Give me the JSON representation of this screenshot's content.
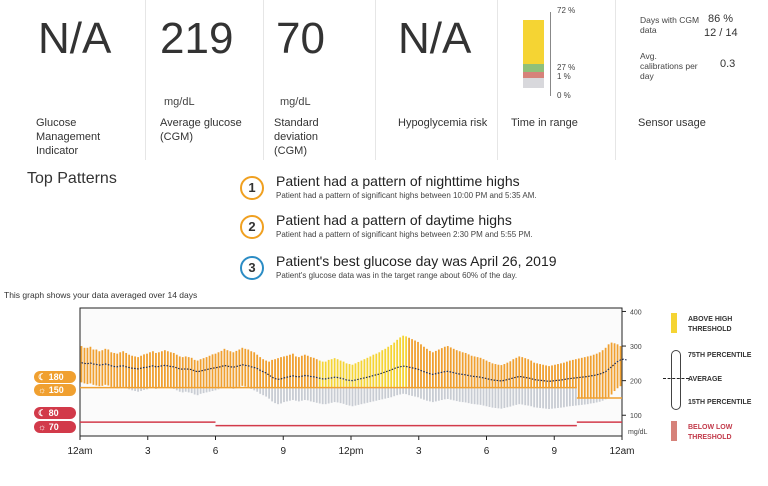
{
  "metrics": {
    "gmi": {
      "value": "N/A",
      "label": "Glucose Management Indicator"
    },
    "avg_glucose": {
      "value": "219",
      "unit": "mg/dL",
      "label": "Average glucose (CGM)"
    },
    "std_dev": {
      "value": "70",
      "unit": "mg/dL",
      "label": "Standard deviation (CGM)"
    },
    "hypo_risk": {
      "value": "N/A",
      "label": "Hypoglycemia risk"
    },
    "time_in_range": {
      "label": "Time in range",
      "above": "72 %",
      "in_range": "27 %",
      "low": "1 %",
      "very_low": "0 %",
      "above_fraction": 0.72,
      "in_range_fraction": 0.27,
      "low_fraction": 0.01,
      "very_low_fraction": 0.0
    },
    "sensor_usage": {
      "label": "Sensor usage",
      "days_with_label": "Days with CGM data",
      "days_with_pct": "86 %",
      "days_with_count": "12 / 14",
      "calibrations_label": "Avg. calibrations per day",
      "calibrations_value": "0.3"
    }
  },
  "top_patterns": {
    "title": "Top Patterns",
    "items": [
      {
        "number": "1",
        "heading": "Patient had a pattern of nighttime highs",
        "detail": "Patient had a pattern of significant highs between 10:00 PM and 5:35 AM."
      },
      {
        "number": "2",
        "heading": "Patient had a pattern of daytime highs",
        "detail": "Patient had a pattern of significant highs between 2:30 PM and 5:55 PM."
      },
      {
        "number": "3",
        "heading": "Patient's best glucose day was April 26, 2019",
        "detail": "Patient's glucose data was in the target range about 60% of the day."
      }
    ]
  },
  "graph_caption": "This graph shows your data averaged over 14 days",
  "targets": {
    "high_1": "180",
    "high_2": "150",
    "low_1": "80",
    "low_2": "70"
  },
  "legend": {
    "above_high": "ABOVE HIGH THRESHOLD",
    "p75": "75TH PERCENTILE",
    "average": "AVERAGE",
    "p15": "15TH PERCENTILE",
    "below_low": "BELOW LOW THRESHOLD"
  },
  "colors": {
    "above_high": "#f5d433",
    "orange": "#f0a030",
    "below": "#c8ccd3",
    "low_line": "#d23a4a",
    "in_range": "#8fc07a",
    "low": "#d6827a"
  },
  "chart_data": {
    "type": "bar",
    "title": "",
    "xlabel": "",
    "ylabel": "mg/dL",
    "x_ticks": [
      "12am",
      "3",
      "6",
      "9",
      "12pm",
      "3",
      "6",
      "9",
      "12am"
    ],
    "y_ticks": [
      100,
      200,
      300,
      400
    ],
    "ylim": [
      40,
      410
    ],
    "high_threshold_segments": [
      {
        "from_hour": 0,
        "to_hour": 6,
        "value": 180
      },
      {
        "from_hour": 6,
        "to_hour": 22,
        "value": 180
      },
      {
        "from_hour": 22,
        "to_hour": 24,
        "value": 150
      }
    ],
    "low_threshold_segments": [
      {
        "from_hour": 0,
        "to_hour": 6,
        "value": 80
      },
      {
        "from_hour": 6,
        "to_hour": 22,
        "value": 70
      },
      {
        "from_hour": 22,
        "to_hour": 24,
        "value": 80
      }
    ],
    "series": [
      {
        "name": "75TH PERCENTILE",
        "values": [
          300,
          295,
          295,
          298,
          290,
          290,
          285,
          288,
          292,
          290,
          282,
          280,
          278,
          282,
          285,
          280,
          275,
          272,
          270,
          268,
          272,
          276,
          278,
          282,
          285,
          280,
          282,
          285,
          288,
          285,
          282,
          280,
          275,
          270,
          268,
          270,
          268,
          266,
          260,
          258,
          262,
          265,
          268,
          272,
          276,
          278,
          282,
          286,
          292,
          288,
          285,
          282,
          286,
          290,
          295,
          292,
          290,
          285,
          282,
          275,
          268,
          262,
          258,
          255,
          260,
          262,
          265,
          268,
          270,
          272,
          275,
          278,
          270,
          268,
          272,
          275,
          272,
          268,
          266,
          262,
          258,
          255,
          255,
          260,
          262,
          265,
          262,
          258,
          255,
          250,
          248,
          246,
          250,
          254,
          258,
          262,
          266,
          270,
          275,
          278,
          282,
          288,
          292,
          298,
          303,
          310,
          318,
          325,
          330,
          328,
          324,
          320,
          316,
          312,
          305,
          298,
          292,
          286,
          282,
          286,
          290,
          294,
          298,
          300,
          296,
          292,
          288,
          285,
          282,
          280,
          276,
          272,
          270,
          268,
          266,
          262,
          258,
          254,
          250,
          248,
          246,
          245,
          248,
          252,
          256,
          262,
          266,
          270,
          268,
          265,
          262,
          258,
          252,
          250,
          248,
          246,
          244,
          242,
          244,
          246,
          248,
          250,
          252,
          255,
          258,
          260,
          262,
          264,
          266,
          268,
          270,
          272,
          275,
          278,
          282,
          288,
          295,
          305,
          310,
          308,
          305,
          300
        ]
      },
      {
        "name": "AVERAGE",
        "values": [
          252,
          250,
          249,
          251,
          248,
          247,
          245,
          246,
          248,
          246,
          243,
          241,
          240,
          242,
          243,
          240,
          238,
          236,
          235,
          234,
          236,
          238,
          239,
          241,
          243,
          240,
          241,
          243,
          244,
          243,
          241,
          240,
          237,
          234,
          233,
          234,
          233,
          232,
          228,
          226,
          228,
          230,
          232,
          234,
          236,
          237,
          239,
          241,
          244,
          242,
          240,
          239,
          241,
          243,
          246,
          244,
          243,
          240,
          238,
          235,
          230,
          226,
          222,
          216,
          210,
          206,
          204,
          205,
          208,
          210,
          212,
          214,
          212,
          211,
          213,
          215,
          214,
          212,
          211,
          209,
          207,
          205,
          205,
          207,
          208,
          210,
          209,
          207,
          205,
          202,
          201,
          200,
          202,
          204,
          206,
          208,
          210,
          212,
          215,
          217,
          219,
          222,
          225,
          228,
          231,
          235,
          238,
          240,
          242,
          241,
          239,
          237,
          235,
          233,
          229,
          226,
          223,
          220,
          218,
          220,
          222,
          224,
          226,
          227,
          225,
          223,
          221,
          219,
          218,
          217,
          215,
          213,
          212,
          211,
          210,
          208,
          206,
          204,
          202,
          201,
          200,
          199,
          201,
          203,
          205,
          208,
          210,
          212,
          211,
          209,
          208,
          206,
          203,
          202,
          201,
          200,
          199,
          198,
          199,
          200,
          201,
          202,
          203,
          205,
          206,
          207,
          208,
          209,
          210,
          211,
          212,
          214,
          215,
          217,
          219,
          222,
          226,
          233,
          240,
          248,
          255,
          260,
          262,
          260
        ]
      },
      {
        "name": "15TH PERCENTILE",
        "values": [
          195,
          192,
          190,
          192,
          188,
          186,
          184,
          185,
          188,
          186,
          182,
          180,
          178,
          180,
          182,
          178,
          175,
          172,
          170,
          168,
          170,
          173,
          175,
          178,
          180,
          176,
          178,
          180,
          182,
          180,
          178,
          176,
          172,
          168,
          166,
          168,
          166,
          164,
          160,
          158,
          162,
          164,
          166,
          168,
          170,
          172,
          175,
          178,
          182,
          180,
          178,
          176,
          178,
          182,
          185,
          183,
          180,
          176,
          172,
          168,
          162,
          158,
          154,
          148,
          140,
          135,
          132,
          134,
          138,
          140,
          142,
          144,
          142,
          140,
          142,
          144,
          143,
          140,
          138,
          136,
          134,
          132,
          132,
          134,
          136,
          138,
          137,
          135,
          133,
          130,
          128,
          126,
          128,
          130,
          132,
          134,
          136,
          138,
          140,
          142,
          144,
          146,
          148,
          150,
          152,
          155,
          158,
          160,
          162,
          161,
          158,
          156,
          154,
          152,
          148,
          145,
          142,
          140,
          138,
          140,
          142,
          144,
          146,
          147,
          145,
          143,
          141,
          139,
          138,
          137,
          135,
          133,
          132,
          131,
          130,
          128,
          126,
          124,
          122,
          121,
          120,
          119,
          121,
          123,
          125,
          128,
          130,
          132,
          131,
          129,
          128,
          126,
          123,
          122,
          121,
          120,
          119,
          118,
          119,
          120,
          121,
          122,
          123,
          125,
          126,
          127,
          128,
          129,
          130,
          131,
          132,
          134,
          135,
          137,
          139,
          142,
          146,
          152,
          160,
          170,
          178,
          184,
          186,
          184
        ]
      }
    ]
  }
}
